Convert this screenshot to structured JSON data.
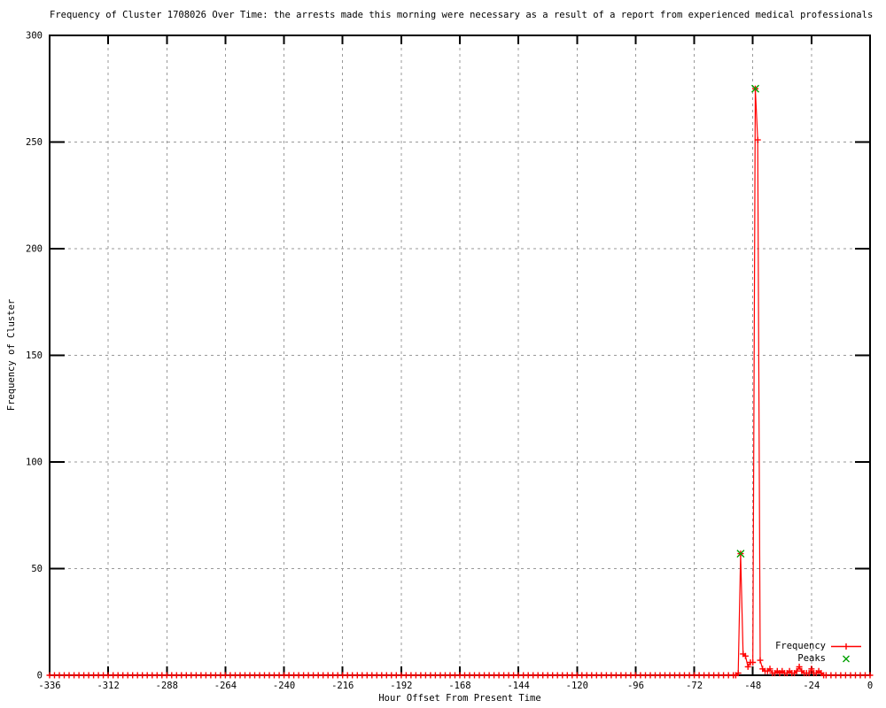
{
  "chart_data": {
    "type": "line",
    "title": "Frequency of Cluster 1708026 Over Time: the arrests made this morning were necessary as a result of a report from experienced medical professionals",
    "xlabel": "Hour Offset From Present Time",
    "ylabel": "Frequency of Cluster",
    "xlim": [
      -336,
      0
    ],
    "ylim": [
      0,
      300
    ],
    "xticks": [
      -336,
      -312,
      -288,
      -264,
      -240,
      -216,
      -192,
      -168,
      -144,
      -120,
      -96,
      -72,
      -48,
      -24,
      0
    ],
    "yticks": [
      0,
      50,
      100,
      150,
      200,
      250,
      300
    ],
    "grid": true,
    "grid_color": "#999999",
    "axis_color": "#000000",
    "background_color": "#ffffff",
    "legend_position": "inside-bottom-right",
    "series": [
      {
        "name": "Frequency",
        "color": "#ff0000",
        "marker": "plus",
        "style": "linespoints",
        "baseline": {
          "from": -336,
          "to": -58,
          "step": 2,
          "value": 0
        },
        "points": [
          [
            -56,
            0
          ],
          [
            -55,
            0
          ],
          [
            -54,
            1
          ],
          [
            -53,
            57
          ],
          [
            -52,
            10
          ],
          [
            -51,
            9
          ],
          [
            -50,
            4
          ],
          [
            -49,
            6
          ],
          [
            -48,
            6
          ],
          [
            -47,
            275
          ],
          [
            -46,
            251
          ],
          [
            -45,
            7
          ],
          [
            -44,
            3
          ],
          [
            -43,
            2
          ],
          [
            -42,
            2
          ],
          [
            -41,
            3
          ],
          [
            -40,
            1
          ],
          [
            -39,
            1
          ],
          [
            -38,
            2
          ],
          [
            -37,
            1
          ],
          [
            -36,
            2
          ],
          [
            -35,
            1
          ],
          [
            -34,
            1
          ],
          [
            -33,
            2
          ],
          [
            -32,
            1
          ],
          [
            -31,
            1
          ],
          [
            -30,
            2
          ],
          [
            -29,
            4
          ],
          [
            -28,
            2
          ],
          [
            -27,
            1
          ],
          [
            -26,
            1
          ],
          [
            -25,
            1
          ],
          [
            -24,
            3
          ],
          [
            -23,
            1
          ],
          [
            -22,
            1
          ],
          [
            -21,
            2
          ],
          [
            -20,
            1
          ],
          [
            -19,
            0
          ]
        ],
        "tail": {
          "from": -18,
          "to": 0,
          "step": 2,
          "value": 0
        }
      },
      {
        "name": "Peaks",
        "color": "#00a000",
        "marker": "x",
        "style": "points",
        "points": [
          [
            -53,
            57
          ],
          [
            -47,
            275
          ]
        ]
      }
    ]
  }
}
